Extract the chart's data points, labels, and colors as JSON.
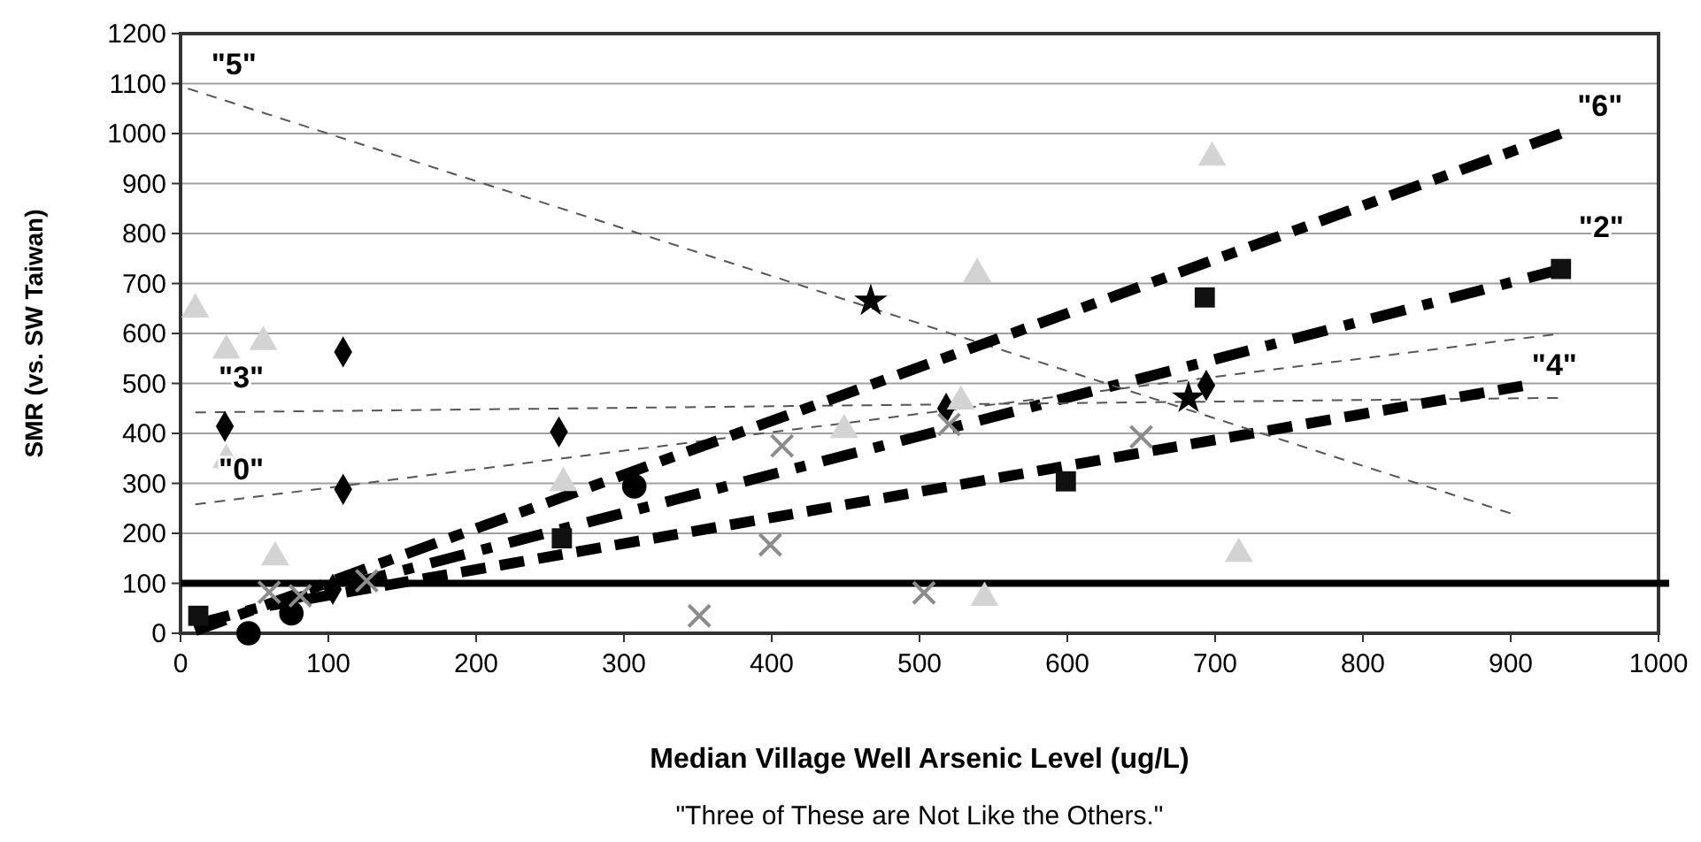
{
  "chart_data": {
    "type": "scatter",
    "xlabel": "Median Village Well Arsenic Level (ug/L)",
    "ylabel": "SMR (vs. SW Taiwan)",
    "xlim": [
      0,
      1000
    ],
    "xticks": [
      0,
      100,
      200,
      300,
      400,
      500,
      600,
      700,
      800,
      900,
      1000
    ],
    "ylim": [
      0,
      1200
    ],
    "yticks": [
      0,
      100,
      200,
      300,
      400,
      500,
      600,
      700,
      800,
      900,
      1000,
      1100,
      1200
    ],
    "grid": "y",
    "legend": false,
    "series": [
      {
        "marker": "square",
        "color": "#111111",
        "x": [
          12,
          258,
          599,
          693,
          934
        ],
        "values": [
          35,
          190,
          304,
          672,
          729
        ]
      },
      {
        "marker": "circle",
        "color": "#000000",
        "x": [
          46,
          75,
          307
        ],
        "values": [
          0,
          40,
          294
        ]
      },
      {
        "marker": "diamond",
        "color": "#000000",
        "x": [
          30,
          103,
          110,
          110,
          256,
          518,
          694
        ],
        "values": [
          414,
          88,
          563,
          288,
          403,
          450,
          496
        ]
      },
      {
        "marker": "triangle",
        "color": "#d3d3d3",
        "x": [
          10,
          31,
          56,
          31,
          64,
          259,
          449,
          528,
          539,
          544,
          698,
          716
        ],
        "values": [
          648,
          566,
          583,
          347,
          152,
          301,
          407,
          464,
          719,
          71,
          952,
          159
        ]
      },
      {
        "marker": "cross",
        "color": "#8c8c8c",
        "x": [
          60,
          81,
          126,
          351,
          399,
          407,
          503,
          520,
          650
        ],
        "values": [
          82,
          75,
          105,
          35,
          177,
          375,
          81,
          418,
          393
        ]
      },
      {
        "marker": "star",
        "color": "#000000",
        "x": [
          467,
          682
        ],
        "values": [
          665,
          471
        ]
      },
      {
        "type": "line",
        "name": "\"0\"",
        "line_style": "dashed",
        "color": "#555555",
        "x": [
          10,
          929
        ],
        "values": [
          258,
          598
        ]
      },
      {
        "type": "line",
        "name": "\"2\"",
        "line_style": "dashed",
        "color": "#000000",
        "x": [
          10,
          935
        ],
        "values": [
          18,
          729
        ]
      },
      {
        "type": "line",
        "name": "\"3\"",
        "line_style": "dashed",
        "color": "#555555",
        "x": [
          10,
          932
        ],
        "values": [
          442,
          471
        ]
      },
      {
        "type": "line",
        "name": "\"4\"",
        "line_style": "dashed",
        "color": "#000000",
        "x": [
          60,
          908
        ],
        "values": [
          55,
          495
        ]
      },
      {
        "type": "line",
        "name": "\"5\"",
        "line_style": "dashed",
        "color": "#555555",
        "x": [
          5,
          900
        ],
        "values": [
          1090,
          240
        ]
      },
      {
        "type": "line",
        "name": "\"6\"",
        "line_style": "dashed",
        "color": "#000000",
        "x": [
          10,
          934
        ],
        "values": [
          5,
          1000
        ]
      }
    ],
    "ref_lines": [
      {
        "axis": "y",
        "value": 100,
        "color": "#000000"
      }
    ],
    "annotations": [
      "\"Three of These are Not Like the Others.\""
    ]
  }
}
